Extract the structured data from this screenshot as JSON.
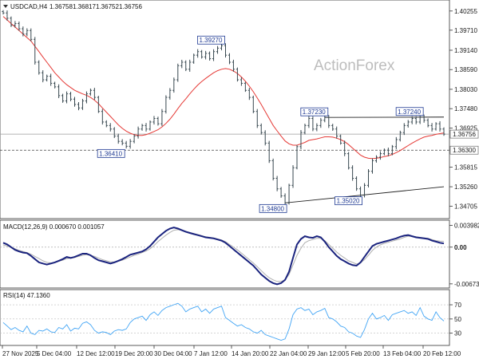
{
  "chart_data": {
    "type": "line",
    "title": "USDCAD,H4",
    "header": {
      "symbol": "USDCAD,H4",
      "ohlc": [
        "1.36758",
        "1.36817",
        "1.36752",
        "1.36756"
      ]
    },
    "watermark": "ActionForex",
    "x_ticks": [
      "27 Nov 2025",
      "5 Dec 04:00",
      "12 Dec 12:00",
      "19 Dec 20:00",
      "30 Dec 04:00",
      "7 Jan 12:00",
      "14 Jan 20:00",
      "22 Jan 04:00",
      "29 Jan 12:00",
      "5 Feb 20:00",
      "13 Feb 04:00",
      "20 Feb 12:00"
    ],
    "x_count": 112,
    "price": {
      "ylim": [
        1.344,
        1.405
      ],
      "ticks": [
        "1.40255",
        "1.39710",
        "1.39140",
        "1.38590",
        "1.38030",
        "1.37480",
        "1.36925",
        "1.35815",
        "1.35260",
        "1.34705"
      ],
      "tick_values": [
        1.40255,
        1.3971,
        1.3914,
        1.3859,
        1.3803,
        1.3748,
        1.36925,
        1.35815,
        1.3526,
        1.34705
      ],
      "close": [
        1.402,
        1.4005,
        1.3985,
        1.399,
        1.3975,
        1.396,
        1.397,
        1.3945,
        1.388,
        1.385,
        1.383,
        1.384,
        1.382,
        1.381,
        1.3785,
        1.377,
        1.379,
        1.3775,
        1.376,
        1.375,
        1.377,
        1.379,
        1.38,
        1.378,
        1.374,
        1.371,
        1.37,
        1.369,
        1.367,
        1.3655,
        1.365,
        1.3641,
        1.3655,
        1.367,
        1.369,
        1.37,
        1.369,
        1.371,
        1.372,
        1.3705,
        1.374,
        1.378,
        1.38,
        1.383,
        1.387,
        1.388,
        1.386,
        1.388,
        1.39,
        1.391,
        1.3895,
        1.3905,
        1.389,
        1.391,
        1.392,
        1.3927,
        1.39,
        1.388,
        1.386,
        1.383,
        1.382,
        1.38,
        1.378,
        1.374,
        1.37,
        1.368,
        1.365,
        1.36,
        1.355,
        1.352,
        1.35,
        1.348,
        1.353,
        1.358,
        1.364,
        1.368,
        1.37,
        1.372,
        1.369,
        1.37,
        1.3715,
        1.3723,
        1.37,
        1.369,
        1.367,
        1.365,
        1.362,
        1.358,
        1.355,
        1.352,
        1.3502,
        1.353,
        1.357,
        1.36,
        1.361,
        1.362,
        1.363,
        1.362,
        1.364,
        1.366,
        1.368,
        1.37,
        1.371,
        1.372,
        1.371,
        1.3724,
        1.3715,
        1.37,
        1.369,
        1.3705,
        1.369,
        1.36756
      ],
      "ma": [
        1.401,
        1.4,
        1.399,
        1.398,
        1.397,
        1.396,
        1.395,
        1.394,
        1.3925,
        1.391,
        1.3895,
        1.388,
        1.3865,
        1.385,
        1.3838,
        1.3826,
        1.3816,
        1.3808,
        1.38,
        1.3795,
        1.379,
        1.3786,
        1.378,
        1.3772,
        1.3762,
        1.375,
        1.3738,
        1.3726,
        1.3714,
        1.3702,
        1.3692,
        1.3684,
        1.3678,
        1.3674,
        1.3672,
        1.3672,
        1.3674,
        1.3678,
        1.3683,
        1.3688,
        1.3696,
        1.3706,
        1.3718,
        1.3732,
        1.3748,
        1.3763,
        1.3776,
        1.379,
        1.3803,
        1.3815,
        1.3825,
        1.3834,
        1.3842,
        1.385,
        1.3856,
        1.386,
        1.3862,
        1.386,
        1.3855,
        1.3848,
        1.3838,
        1.3826,
        1.3812,
        1.3796,
        1.3778,
        1.376,
        1.374,
        1.372,
        1.37,
        1.3685,
        1.367,
        1.3656,
        1.3648,
        1.3644,
        1.3644,
        1.3648,
        1.3652,
        1.3658,
        1.366,
        1.3662,
        1.3665,
        1.3668,
        1.3668,
        1.3667,
        1.3664,
        1.366,
        1.3654,
        1.3646,
        1.3636,
        1.3626,
        1.3616,
        1.361,
        1.3607,
        1.3606,
        1.3607,
        1.3609,
        1.3612,
        1.3614,
        1.3618,
        1.3623,
        1.3629,
        1.3636,
        1.3643,
        1.365,
        1.3656,
        1.3662,
        1.3667,
        1.367,
        1.3672,
        1.3675,
        1.3677,
        1.3679
      ],
      "hlines": [
        {
          "value": 1.36756,
          "label": "1.36756",
          "color": "#9e9e9e"
        },
        {
          "value": 1.363,
          "label": "1.36300",
          "color": "#424242",
          "dashed": true
        }
      ],
      "annotations": [
        {
          "i": 31,
          "value": 1.3641,
          "label": "1.36410",
          "pos": "left"
        },
        {
          "i": 55,
          "value": 1.3927,
          "label": "1.39270",
          "pos": "above"
        },
        {
          "i": 71,
          "value": 1.348,
          "label": "1.34800",
          "pos": "below"
        },
        {
          "i": 81,
          "value": 1.3723,
          "label": "1.37230",
          "pos": "above"
        },
        {
          "i": 90,
          "value": 1.3502,
          "label": "1.35020",
          "pos": "below"
        },
        {
          "i": 105,
          "value": 1.3724,
          "label": "1.37240",
          "pos": "above"
        }
      ],
      "trendlines": [
        {
          "from": [
            81,
            1.3723
          ],
          "to": [
            111,
            1.3724
          ]
        },
        {
          "from": [
            71,
            1.348
          ],
          "to": [
            111,
            1.3526
          ]
        }
      ]
    },
    "macd": {
      "label": "MACD(12,26,9) 0.000670 0.001057",
      "ylim": [
        -0.0072,
        0.0045
      ],
      "ticks": [
        "0.003982",
        "0.00",
        "-0.006737"
      ],
      "tick_values": [
        0.003982,
        0.0,
        -0.006737
      ],
      "macd": [
        0.0008,
        0.0005,
        0.0,
        -0.0005,
        -0.0008,
        -0.001,
        -0.0011,
        -0.0016,
        -0.0022,
        -0.0028,
        -0.003,
        -0.0032,
        -0.003,
        -0.0028,
        -0.0025,
        -0.0022,
        -0.0018,
        -0.002,
        -0.0018,
        -0.0015,
        -0.0012,
        -0.0012,
        -0.0015,
        -0.002,
        -0.0024,
        -0.0026,
        -0.0028,
        -0.003,
        -0.0028,
        -0.0025,
        -0.0022,
        -0.0018,
        -0.0014,
        -0.0012,
        -0.001,
        -0.0008,
        -0.0004,
        0.0002,
        0.001,
        0.0018,
        0.0024,
        0.003,
        0.0034,
        0.0036,
        0.0034,
        0.0031,
        0.0028,
        0.0026,
        0.0024,
        0.0022,
        0.002,
        0.0018,
        0.0017,
        0.0016,
        0.0014,
        0.0012,
        0.0008,
        0.0002,
        -0.0004,
        -0.001,
        -0.0016,
        -0.0022,
        -0.0028,
        -0.0034,
        -0.0042,
        -0.005,
        -0.0056,
        -0.0062,
        -0.0066,
        -0.0068,
        -0.0066,
        -0.006,
        -0.0045,
        -0.002,
        0.0005,
        0.0015,
        0.002,
        0.0018,
        0.0017,
        0.002,
        0.0018,
        0.001,
        0.0,
        -0.0008,
        -0.0016,
        -0.0022,
        -0.0026,
        -0.003,
        -0.0033,
        -0.0034,
        -0.0028,
        -0.0018,
        -0.0008,
        0.0002,
        0.0006,
        0.0008,
        0.001,
        0.0012,
        0.0014,
        0.0016,
        0.0019,
        0.0021,
        0.0022,
        0.002,
        0.0018,
        0.0017,
        0.0016,
        0.0015,
        0.0012,
        0.001,
        0.0008,
        0.00067
      ],
      "signal": [
        0.0004,
        0.0002,
        0.0,
        -0.0003,
        -0.0006,
        -0.0008,
        -0.001,
        -0.0013,
        -0.0017,
        -0.0021,
        -0.0025,
        -0.0028,
        -0.0029,
        -0.0028,
        -0.0026,
        -0.0024,
        -0.0021,
        -0.002,
        -0.0019,
        -0.0017,
        -0.0015,
        -0.0014,
        -0.0015,
        -0.0017,
        -0.002,
        -0.0023,
        -0.0025,
        -0.0027,
        -0.0027,
        -0.0026,
        -0.0024,
        -0.0021,
        -0.0018,
        -0.0015,
        -0.0013,
        -0.001,
        -0.0007,
        -0.0003,
        0.0003,
        0.001,
        0.0016,
        0.0022,
        0.0027,
        0.0031,
        0.0032,
        0.0031,
        0.0029,
        0.0027,
        0.0025,
        0.0023,
        0.0021,
        0.0019,
        0.0018,
        0.0017,
        0.0015,
        0.0013,
        0.001,
        0.0005,
        0.0,
        -0.0005,
        -0.0011,
        -0.0017,
        -0.0023,
        -0.0029,
        -0.0036,
        -0.0043,
        -0.005,
        -0.0056,
        -0.006,
        -0.0063,
        -0.0063,
        -0.006,
        -0.005,
        -0.0033,
        -0.0015,
        -0.0002,
        0.0008,
        0.0012,
        0.0014,
        0.0016,
        0.0016,
        0.0012,
        0.0005,
        -0.0002,
        -0.0009,
        -0.0015,
        -0.002,
        -0.0025,
        -0.0028,
        -0.0031,
        -0.0029,
        -0.0023,
        -0.0015,
        -0.0006,
        0.0,
        0.0004,
        0.0007,
        0.0009,
        0.0011,
        0.0013,
        0.0015,
        0.0018,
        0.002,
        0.002,
        0.0019,
        0.0018,
        0.0017,
        0.0016,
        0.0014,
        0.0012,
        0.0011,
        0.001057
      ]
    },
    "rsi": {
      "label": "RSI(14) 47.1360",
      "ylim": [
        15,
        88
      ],
      "ticks": [
        "70",
        "50",
        "30"
      ],
      "tick_values": [
        70,
        50,
        30
      ],
      "values": [
        45,
        40,
        35,
        38,
        34,
        32,
        40,
        30,
        28,
        34,
        33,
        36,
        32,
        31,
        38,
        36,
        42,
        33,
        37,
        36,
        44,
        46,
        42,
        34,
        30,
        32,
        31,
        28,
        33,
        35,
        34,
        36,
        45,
        50,
        52,
        54,
        48,
        56,
        60,
        55,
        62,
        66,
        68,
        70,
        72,
        68,
        60,
        64,
        66,
        68,
        60,
        64,
        58,
        64,
        66,
        68,
        52,
        48,
        44,
        40,
        42,
        38,
        36,
        32,
        30,
        34,
        28,
        26,
        24,
        22,
        20,
        22,
        36,
        56,
        64,
        66,
        62,
        64,
        56,
        60,
        62,
        65,
        52,
        50,
        46,
        40,
        38,
        32,
        30,
        26,
        24,
        35,
        50,
        58,
        50,
        52,
        55,
        48,
        56,
        58,
        60,
        62,
        58,
        60,
        55,
        66,
        54,
        50,
        48,
        60,
        52,
        47.136
      ]
    }
  }
}
